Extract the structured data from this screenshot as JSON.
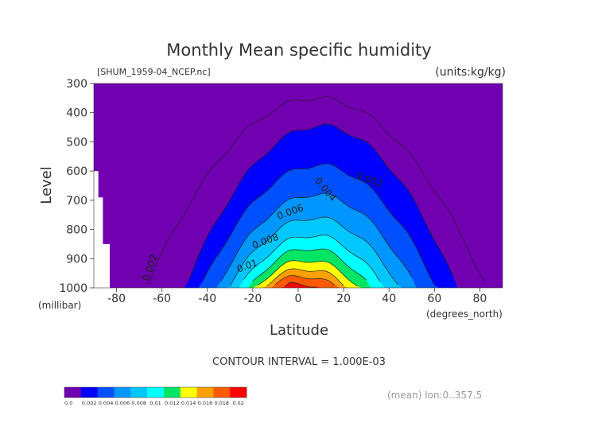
{
  "chart_data": {
    "type": "contour",
    "title": "Monthly Mean specific humidity",
    "file_label": "[SHUM_1959-04_NCEP.nc]",
    "units_label": "(units:kg/kg)",
    "xlabel": "Latitude",
    "x_unit_label": "(degrees_north)",
    "ylabel": "Level",
    "y_unit_label": "(millibar)",
    "xlim": [
      -90,
      90
    ],
    "ylim": [
      1000,
      300
    ],
    "x_ticks": [
      -80,
      -60,
      -40,
      -20,
      0,
      20,
      40,
      60,
      80
    ],
    "y_ticks": [
      300,
      400,
      500,
      600,
      700,
      800,
      900,
      1000
    ],
    "contour_interval_label": "CONTOUR INTERVAL = 1.000E-03",
    "mean_label": "(mean) lon:0..357.5",
    "contour_labels": [
      {
        "text": "0.002",
        "lat": 31,
        "lev": 640,
        "angle": 20
      },
      {
        "text": "0.004",
        "lat": 11,
        "lev": 670,
        "angle": 50
      },
      {
        "text": "0.006",
        "lat": -3,
        "lev": 750,
        "angle": -20
      },
      {
        "text": "0.008",
        "lat": -14,
        "lev": 850,
        "angle": -20
      },
      {
        "text": "0.01",
        "lat": -22,
        "lev": 935,
        "angle": -20
      },
      {
        "text": "0.002",
        "lat": -64,
        "lev": 935,
        "angle": -70
      }
    ],
    "missing_data_region": [
      [
        -90,
        600
      ],
      [
        -88,
        600
      ],
      [
        -88,
        690
      ],
      [
        -86,
        690
      ],
      [
        -86,
        850
      ],
      [
        -83,
        850
      ],
      [
        -83,
        1000
      ],
      [
        -90,
        1000
      ]
    ],
    "fill_levels": [
      {
        "threshold": 0.002,
        "color": "#0000ff",
        "peak": 445,
        "half_width": 60,
        "edge_offset": 10
      },
      {
        "threshold": 0.004,
        "color": "#0050ff",
        "peak": 580,
        "half_width": 52,
        "edge_offset": 9
      },
      {
        "threshold": 0.006,
        "color": "#0096ff",
        "peak": 680,
        "half_width": 44,
        "edge_offset": 8
      },
      {
        "threshold": 0.008,
        "color": "#00c8ff",
        "peak": 760,
        "half_width": 38,
        "edge_offset": 7
      },
      {
        "threshold": 0.01,
        "color": "#00ffff",
        "peak": 820,
        "half_width": 32,
        "edge_offset": 6
      },
      {
        "threshold": 0.012,
        "color": "#00e664",
        "peak": 865,
        "half_width": 27,
        "edge_offset": 5
      },
      {
        "threshold": 0.014,
        "color": "#ffff00",
        "peak": 905,
        "half_width": 23,
        "edge_offset": 4
      },
      {
        "threshold": 0.016,
        "color": "#ffa000",
        "peak": 935,
        "half_width": 19,
        "edge_offset": 3
      },
      {
        "threshold": 0.018,
        "color": "#ff5a00",
        "peak": 960,
        "half_width": 15,
        "edge_offset": 2
      },
      {
        "threshold": 0.02,
        "color": "#ff0000",
        "peak": 985,
        "half_width": 8,
        "edge_offset": 1
      }
    ],
    "outer_contour": {
      "peak": 350,
      "half_width": 75,
      "edge_offset": 8
    },
    "colorbar": {
      "ticks": [
        "0.0",
        "0.002",
        "0.004",
        "0.006",
        "0.008",
        "0.01",
        "0.012",
        "0.014",
        "0.016",
        "0.018",
        "0.02"
      ],
      "colors": [
        "#7000b0",
        "#0000ff",
        "#0050ff",
        "#0096ff",
        "#00c8ff",
        "#00ffff",
        "#00e664",
        "#ffff00",
        "#ffa000",
        "#ff5a00",
        "#ff0000"
      ]
    },
    "background_color": "#7000b0"
  }
}
